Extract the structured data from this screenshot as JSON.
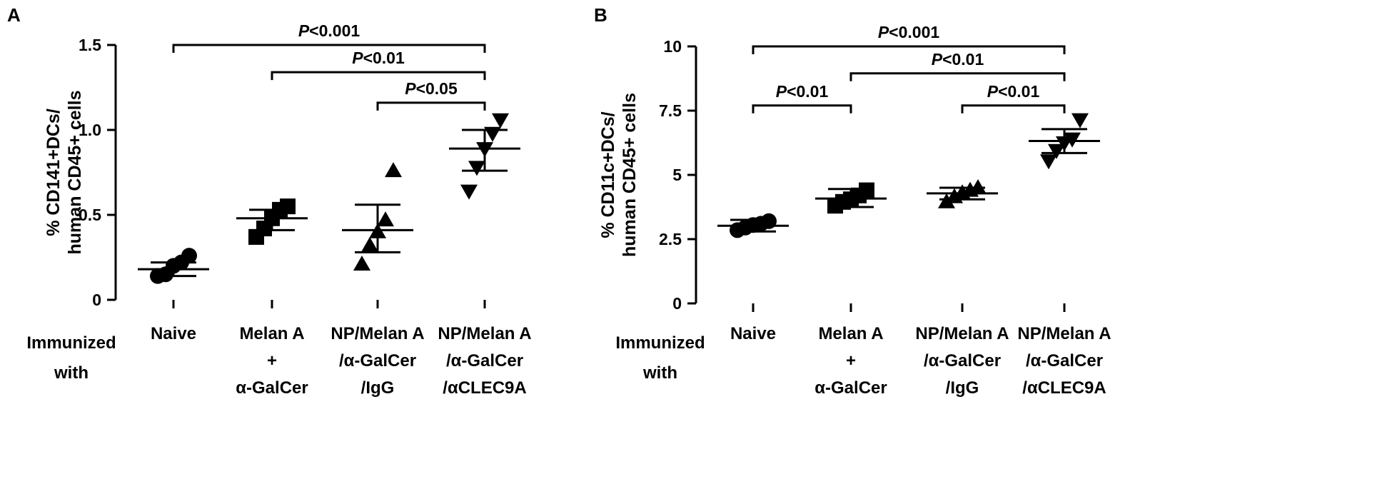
{
  "figure": {
    "row_label_lines": [
      "Immunized",
      "with"
    ]
  },
  "chart_data": [
    {
      "panel": "A",
      "type": "scatter",
      "ylabel_lines": [
        "% CD141+DCs/",
        "human CD45+ cells"
      ],
      "ylim": [
        0,
        1.5
      ],
      "yticks": [
        {
          "value": 0,
          "label": "0"
        },
        {
          "value": 0.5,
          "label": "0.5"
        },
        {
          "value": 1.0,
          "label": "1.0"
        },
        {
          "value": 1.5,
          "label": "1.5"
        }
      ],
      "categories": [
        {
          "lines": [
            "Naive"
          ]
        },
        {
          "lines": [
            "Melan A",
            "+",
            "α-GalCer"
          ]
        },
        {
          "lines": [
            "NP/Melan A",
            "/α-GalCer",
            "/IgG"
          ]
        },
        {
          "lines": [
            "NP/Melan A",
            "/α-GalCer",
            "/αCLEC9A"
          ]
        }
      ],
      "series": [
        {
          "marker": "circle",
          "mean": 0.18,
          "sem_low": 0.14,
          "sem_high": 0.22,
          "points": [
            0.14,
            0.15,
            0.2,
            0.22,
            0.26
          ]
        },
        {
          "marker": "square",
          "mean": 0.48,
          "sem_low": 0.41,
          "sem_high": 0.53,
          "points": [
            0.37,
            0.42,
            0.48,
            0.53,
            0.55
          ]
        },
        {
          "marker": "triangle-up",
          "mean": 0.41,
          "sem_low": 0.28,
          "sem_high": 0.56,
          "points": [
            0.21,
            0.32,
            0.4,
            0.47,
            0.76
          ]
        },
        {
          "marker": "triangle-down",
          "mean": 0.89,
          "sem_low": 0.76,
          "sem_high": 1.0,
          "points": [
            0.64,
            0.78,
            0.89,
            0.98,
            1.06
          ]
        }
      ],
      "comparisons": [
        {
          "from": 0,
          "to": 3,
          "p": "P",
          "rest": "<0.001",
          "y": 1.5
        },
        {
          "from": 1,
          "to": 3,
          "p": "P",
          "rest": "<0.01",
          "y": 1.34
        },
        {
          "from": 2,
          "to": 3,
          "p": "P",
          "rest": "<0.05",
          "y": 1.16
        }
      ]
    },
    {
      "panel": "B",
      "type": "scatter",
      "ylabel_lines": [
        "% CD11c+DCs/",
        "human CD45+ cells"
      ],
      "ylim": [
        0,
        10
      ],
      "yticks": [
        {
          "value": 0,
          "label": "0"
        },
        {
          "value": 2.5,
          "label": "2.5"
        },
        {
          "value": 5,
          "label": "5"
        },
        {
          "value": 7.5,
          "label": "7.5"
        },
        {
          "value": 10,
          "label": "10"
        }
      ],
      "categories": [
        {
          "lines": [
            "Naive"
          ]
        },
        {
          "lines": [
            "Melan A",
            "+",
            "α-GalCer"
          ]
        },
        {
          "lines": [
            "NP/Melan A",
            "/α-GalCer",
            "/IgG"
          ]
        },
        {
          "lines": [
            "NP/Melan A",
            "/α-GalCer",
            "/αCLEC9A"
          ]
        }
      ],
      "series": [
        {
          "marker": "circle",
          "mean": 3.02,
          "sem_low": 2.8,
          "sem_high": 3.25,
          "points": [
            2.85,
            2.95,
            3.05,
            3.1,
            3.2
          ]
        },
        {
          "marker": "square",
          "mean": 4.08,
          "sem_low": 3.75,
          "sem_high": 4.45,
          "points": [
            3.8,
            3.95,
            4.05,
            4.2,
            4.4
          ]
        },
        {
          "marker": "triangle-up",
          "mean": 4.28,
          "sem_low": 4.05,
          "sem_high": 4.5,
          "points": [
            3.95,
            4.15,
            4.3,
            4.4,
            4.5
          ]
        },
        {
          "marker": "triangle-down",
          "mean": 6.32,
          "sem_low": 5.85,
          "sem_high": 6.78,
          "points": [
            5.55,
            5.95,
            6.25,
            6.4,
            7.15
          ]
        }
      ],
      "comparisons": [
        {
          "from": 0,
          "to": 3,
          "p": "P",
          "rest": "<0.001",
          "y": 10.0
        },
        {
          "from": 1,
          "to": 3,
          "p": "P",
          "rest": "<0.01",
          "y": 8.95
        },
        {
          "from": 0,
          "to": 1,
          "p": "P",
          "rest": "<0.01",
          "y": 7.7
        },
        {
          "from": 2,
          "to": 3,
          "p": "P",
          "rest": "<0.01",
          "y": 7.7
        }
      ]
    }
  ]
}
